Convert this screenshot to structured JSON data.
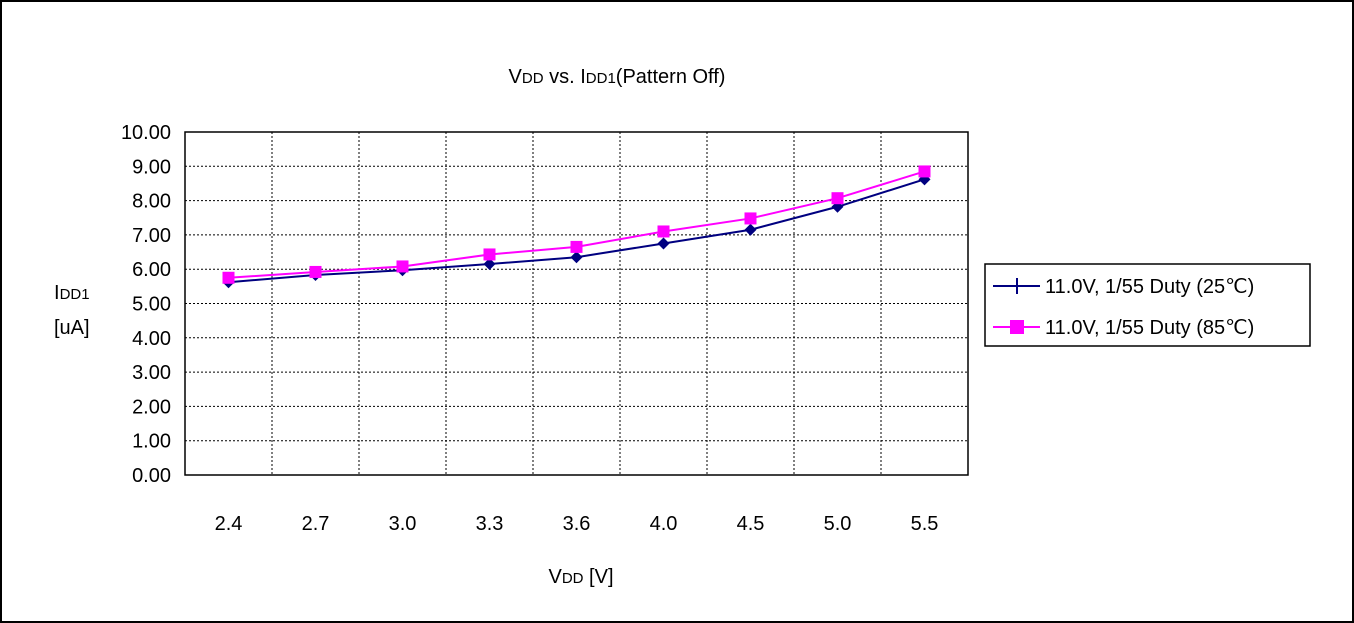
{
  "chart_data": {
    "type": "line",
    "title": "VDD vs. IDD1(Pattern Off)",
    "title_parts": {
      "v": "V",
      "dd": "DD",
      "mid": " vs. I",
      "dd1": "DD1",
      "rest": "(Pattern Off)"
    },
    "xlabel": "VDD [V]",
    "xlabel_parts": {
      "v": "V",
      "dd": "DD",
      "rest": " [V]"
    },
    "ylabel": "IDD1 [uA]",
    "ylabel_parts": {
      "i": "I",
      "dd1": "DD1",
      "unit": "[uA]"
    },
    "categories": [
      "2.4",
      "2.7",
      "3.0",
      "3.3",
      "3.6",
      "4.0",
      "4.5",
      "5.0",
      "5.5"
    ],
    "y_ticks": [
      "0.00",
      "1.00",
      "2.00",
      "3.00",
      "4.00",
      "5.00",
      "6.00",
      "7.00",
      "8.00",
      "9.00",
      "10.00"
    ],
    "ylim": [
      0,
      10
    ],
    "grid": true,
    "legend_position": "right",
    "series": [
      {
        "name": "11.0V, 1/55 Duty (25℃)",
        "values": [
          5.62,
          5.83,
          5.97,
          6.15,
          6.35,
          6.75,
          7.15,
          7.82,
          8.62
        ],
        "color": "#000080",
        "marker": "diamond"
      },
      {
        "name": "11.0V, 1/55 Duty (85℃)",
        "values": [
          5.75,
          5.92,
          6.08,
          6.43,
          6.65,
          7.1,
          7.48,
          8.07,
          8.85
        ],
        "color": "#ff00ff",
        "marker": "square"
      }
    ]
  }
}
